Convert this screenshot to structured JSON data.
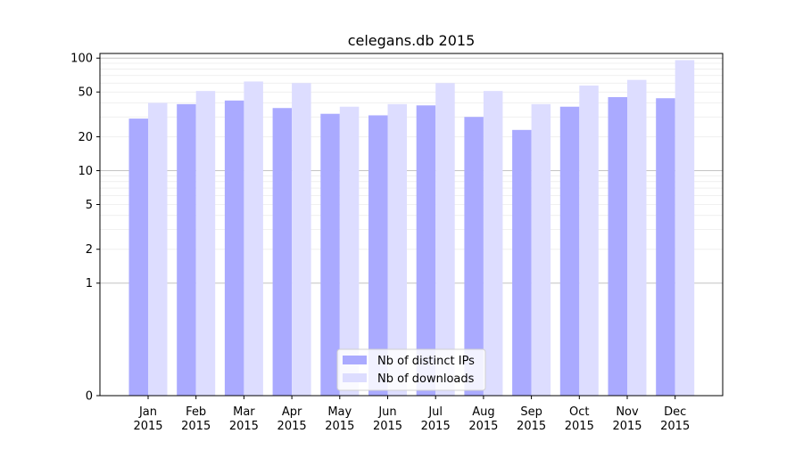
{
  "chart_data": {
    "type": "bar",
    "title": "celegans.db 2015",
    "xlabel": "",
    "ylabel": "",
    "y_scale": "symlog",
    "ylim": [
      0,
      110
    ],
    "y_ticks": [
      0,
      1,
      2,
      5,
      10,
      20,
      50,
      100
    ],
    "y_tick_labels": [
      "0",
      "1",
      "2",
      "5",
      "10",
      "20",
      "50",
      "100"
    ],
    "grid": "horizontal",
    "legend_position": "bottom-center",
    "categories": [
      "Jan\n2015",
      "Feb\n2015",
      "Mar\n2015",
      "Apr\n2015",
      "May\n2015",
      "Jun\n2015",
      "Jul\n2015",
      "Aug\n2015",
      "Sep\n2015",
      "Oct\n2015",
      "Nov\n2015",
      "Dec\n2015"
    ],
    "series": [
      {
        "name": "Nb of distinct IPs",
        "color": "#aaaaff",
        "values": [
          29,
          39,
          42,
          36,
          32,
          31,
          38,
          30,
          23,
          37,
          45,
          44
        ]
      },
      {
        "name": "Nb of downloads",
        "color": "#ddddff",
        "values": [
          40,
          51,
          62,
          60,
          37,
          39,
          60,
          51,
          39,
          57,
          64,
          96
        ]
      }
    ]
  }
}
